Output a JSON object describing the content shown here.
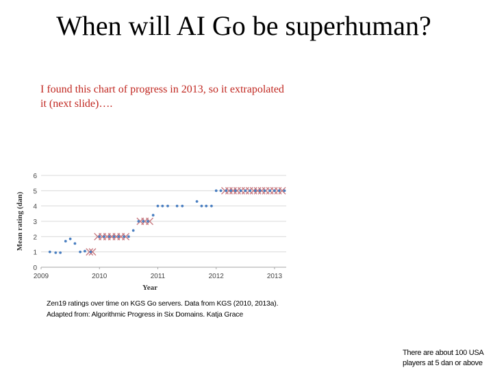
{
  "slide": {
    "title": "When will AI Go be superhuman?",
    "intro": "I found this chart of progress in 2013, so it extrapolated it (next slide)….",
    "caption_line1": "Zen19 ratings over time on KGS Go servers. Data from KGS (2010, 2013a).",
    "caption_line2": "Adapted from: Algorithmic Progress in Six Domains. Katja Grace",
    "footnote_line1": "There are about 100 USA",
    "footnote_line2": "players at 5 dan or above"
  },
  "colors": {
    "dot": "#4a7fc1",
    "cross": "#c97a80",
    "grid": "#d9d9d9",
    "axis": "#a6a6a6",
    "intro_text": "#c0261f"
  },
  "chart_data": {
    "type": "scatter",
    "title": "",
    "xlabel": "Year",
    "ylabel": "Mean rating (dan)",
    "xlim": [
      2009,
      2013.2
    ],
    "ylim": [
      0,
      6
    ],
    "xticks": [
      "2009",
      "2010",
      "2011",
      "2012",
      "2013"
    ],
    "yticks": [
      "0",
      "1",
      "2",
      "3",
      "4",
      "5",
      "6"
    ],
    "grid": true,
    "series": [
      {
        "name": "Ratings (dots)",
        "marker": "dot",
        "points": [
          [
            2009.15,
            1.0
          ],
          [
            2009.25,
            0.95
          ],
          [
            2009.33,
            0.95
          ],
          [
            2009.42,
            1.7
          ],
          [
            2009.5,
            1.85
          ],
          [
            2009.58,
            1.55
          ],
          [
            2009.67,
            1.0
          ],
          [
            2009.75,
            1.05
          ],
          [
            2009.85,
            1.0
          ],
          [
            2010.0,
            2.0
          ],
          [
            2010.08,
            2.0
          ],
          [
            2010.17,
            2.0
          ],
          [
            2010.25,
            2.0
          ],
          [
            2010.33,
            2.0
          ],
          [
            2010.42,
            2.0
          ],
          [
            2010.5,
            2.0
          ],
          [
            2010.58,
            2.4
          ],
          [
            2010.67,
            3.0
          ],
          [
            2010.75,
            3.0
          ],
          [
            2010.83,
            3.0
          ],
          [
            2010.92,
            3.4
          ],
          [
            2011.0,
            4.0
          ],
          [
            2011.08,
            4.0
          ],
          [
            2011.17,
            4.0
          ],
          [
            2011.33,
            4.0
          ],
          [
            2011.42,
            4.0
          ],
          [
            2011.67,
            4.3
          ],
          [
            2011.75,
            4.0
          ],
          [
            2011.83,
            4.0
          ],
          [
            2011.92,
            4.0
          ],
          [
            2012.0,
            5.0
          ],
          [
            2012.08,
            5.0
          ],
          [
            2012.17,
            5.0
          ],
          [
            2012.25,
            5.0
          ],
          [
            2012.33,
            5.0
          ],
          [
            2012.42,
            5.0
          ],
          [
            2012.5,
            5.0
          ],
          [
            2012.58,
            5.0
          ],
          [
            2012.67,
            5.0
          ],
          [
            2012.75,
            5.0
          ],
          [
            2012.83,
            5.0
          ],
          [
            2012.92,
            5.0
          ],
          [
            2013.0,
            5.0
          ],
          [
            2013.08,
            5.0
          ],
          [
            2013.17,
            5.0
          ]
        ]
      },
      {
        "name": "Ratings (crosses)",
        "marker": "cross",
        "points": [
          [
            2009.83,
            1.0
          ],
          [
            2009.88,
            1.0
          ],
          [
            2009.97,
            2.0
          ],
          [
            2010.05,
            2.0
          ],
          [
            2010.13,
            2.0
          ],
          [
            2010.21,
            2.0
          ],
          [
            2010.29,
            2.0
          ],
          [
            2010.37,
            2.0
          ],
          [
            2010.45,
            2.0
          ],
          [
            2010.7,
            3.0
          ],
          [
            2010.78,
            3.0
          ],
          [
            2010.86,
            3.0
          ],
          [
            2012.15,
            5.0
          ],
          [
            2012.22,
            5.0
          ],
          [
            2012.29,
            5.0
          ],
          [
            2012.36,
            5.0
          ],
          [
            2012.43,
            5.0
          ],
          [
            2012.5,
            5.0
          ],
          [
            2012.57,
            5.0
          ],
          [
            2012.64,
            5.0
          ],
          [
            2012.71,
            5.0
          ],
          [
            2012.78,
            5.0
          ],
          [
            2012.85,
            5.0
          ],
          [
            2012.92,
            5.0
          ],
          [
            2012.99,
            5.0
          ],
          [
            2013.06,
            5.0
          ],
          [
            2013.13,
            5.0
          ]
        ]
      }
    ]
  }
}
